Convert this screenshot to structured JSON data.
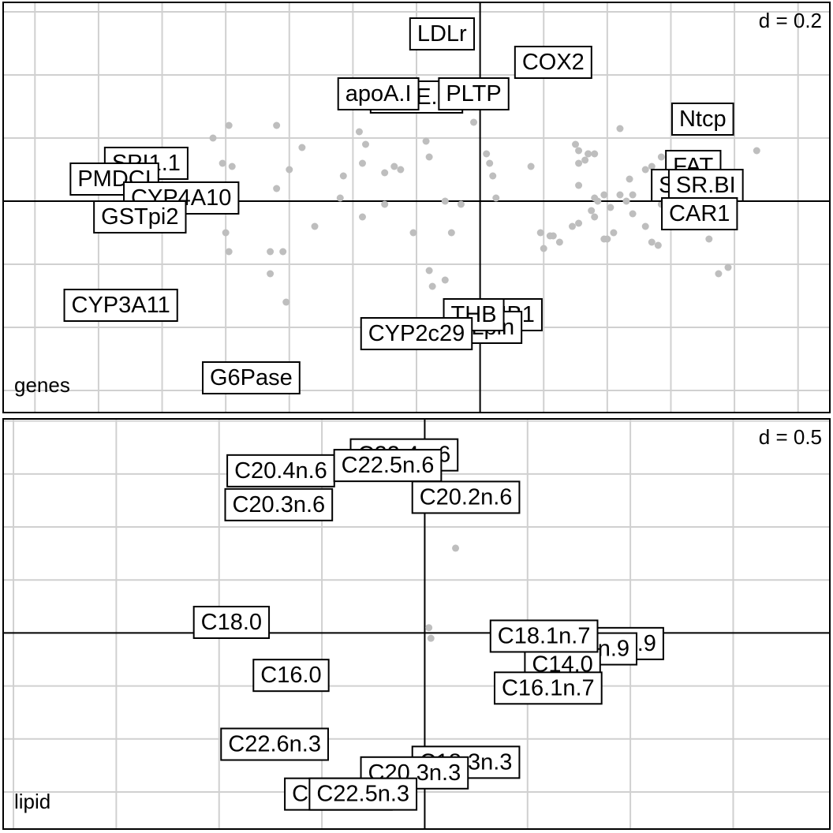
{
  "chart_data": [
    {
      "type": "scatter",
      "panel": "genes",
      "name_label": "genes",
      "scale_label": "d = 0.2",
      "grid_step": 0.2,
      "grid": true,
      "x_range": [
        -1.5,
        1.1
      ],
      "y_range": [
        -0.67,
        0.63
      ],
      "points": [
        [
          -0.79,
          0.24
        ],
        [
          -0.84,
          0.2
        ],
        [
          -0.64,
          0.24
        ],
        [
          -0.81,
          0.12
        ],
        [
          -0.78,
          0.11
        ],
        [
          -0.64,
          0.04
        ],
        [
          -0.56,
          0.17
        ],
        [
          -0.6,
          0.1
        ],
        [
          -0.44,
          0.01
        ],
        [
          -0.8,
          -0.1
        ],
        [
          -0.79,
          -0.16
        ],
        [
          -0.66,
          -0.16
        ],
        [
          -0.62,
          -0.16
        ],
        [
          -0.66,
          -0.23
        ],
        [
          -0.52,
          -0.08
        ],
        [
          -0.61,
          -0.32
        ],
        [
          -0.43,
          0.08
        ],
        [
          -0.38,
          0.22
        ],
        [
          -0.36,
          0.18
        ],
        [
          -0.3,
          0.09
        ],
        [
          -0.27,
          0.11
        ],
        [
          -0.25,
          0.1
        ],
        [
          -0.17,
          0.19
        ],
        [
          -0.16,
          0.14
        ],
        [
          -0.3,
          -0.01
        ],
        [
          -0.37,
          -0.05
        ],
        [
          -0.21,
          -0.1
        ],
        [
          -0.16,
          -0.22
        ],
        [
          -0.15,
          -0.27
        ],
        [
          -0.11,
          -0.25
        ],
        [
          -0.11,
          0.0
        ],
        [
          -0.09,
          -0.1
        ],
        [
          -0.06,
          -0.01
        ],
        [
          -0.02,
          0.25
        ],
        [
          0.02,
          0.15
        ],
        [
          0.04,
          0.08
        ],
        [
          0.05,
          0.01
        ],
        [
          0.03,
          0.12
        ],
        [
          0.16,
          0.11
        ],
        [
          0.19,
          -0.1
        ],
        [
          0.2,
          -0.15
        ],
        [
          0.22,
          -0.11
        ],
        [
          0.23,
          -0.11
        ],
        [
          0.25,
          -0.13
        ],
        [
          0.29,
          -0.08
        ],
        [
          0.31,
          0.05
        ],
        [
          0.3,
          0.18
        ],
        [
          0.31,
          0.12
        ],
        [
          0.31,
          -0.07
        ],
        [
          0.33,
          0.13
        ],
        [
          0.34,
          0.15
        ],
        [
          0.35,
          -0.03
        ],
        [
          0.36,
          0.01
        ],
        [
          0.36,
          -0.05
        ],
        [
          0.37,
          0.0
        ],
        [
          0.39,
          0.02
        ],
        [
          0.39,
          -0.12
        ],
        [
          0.4,
          -0.12
        ],
        [
          0.41,
          -0.02
        ],
        [
          0.42,
          -0.1
        ],
        [
          0.44,
          0.23
        ],
        [
          0.44,
          0.02
        ],
        [
          0.46,
          0.0
        ],
        [
          0.48,
          0.02
        ],
        [
          0.48,
          -0.04
        ],
        [
          0.47,
          0.07
        ],
        [
          0.52,
          0.1
        ],
        [
          0.52,
          -0.08
        ],
        [
          0.54,
          0.11
        ],
        [
          0.55,
          0.03
        ],
        [
          0.57,
          0.14
        ],
        [
          0.57,
          -0.01
        ],
        [
          0.59,
          -0.03
        ],
        [
          0.6,
          0.13
        ],
        [
          0.61,
          0.11
        ],
        [
          0.62,
          0.04
        ],
        [
          0.54,
          -0.13
        ],
        [
          0.56,
          -0.14
        ],
        [
          0.72,
          -0.12
        ],
        [
          0.87,
          0.16
        ],
        [
          0.75,
          -0.23
        ],
        [
          0.78,
          -0.21
        ],
        [
          0.34,
          0.15
        ],
        [
          0.31,
          0.16
        ],
        [
          0.36,
          0.15
        ],
        [
          -0.37,
          0.12
        ]
      ],
      "labels": [
        {
          "text": "LDLr",
          "x": -0.12,
          "y": 0.53
        },
        {
          "text": "COX2",
          "x": 0.23,
          "y": 0.44
        },
        {
          "text": "apoE.lo",
          "x": -0.2,
          "y": 0.33
        },
        {
          "text": "apoA.I",
          "x": -0.32,
          "y": 0.34
        },
        {
          "text": "PLTP",
          "x": -0.02,
          "y": 0.34
        },
        {
          "text": "Ntcp",
          "x": 0.7,
          "y": 0.26
        },
        {
          "text": "FAT",
          "x": 0.67,
          "y": 0.11
        },
        {
          "text": "SPI",
          "x": 0.62,
          "y": 0.05
        },
        {
          "text": "SR.BI",
          "x": 0.71,
          "y": 0.05
        },
        {
          "text": "CAR1",
          "x": 0.69,
          "y": -0.04
        },
        {
          "text": "SPI1.1",
          "x": -1.05,
          "y": 0.12
        },
        {
          "text": "PMDCI",
          "x": -1.15,
          "y": 0.07
        },
        {
          "text": "CYP4A10",
          "x": -0.94,
          "y": 0.01
        },
        {
          "text": "GSTpi2",
          "x": -1.07,
          "y": -0.05
        },
        {
          "text": "CYP3A11",
          "x": -1.13,
          "y": -0.33
        },
        {
          "text": "THB1",
          "x": 0.08,
          "y": -0.36
        },
        {
          "text": "Lpin",
          "x": 0.04,
          "y": -0.4
        },
        {
          "text": "THB",
          "x": -0.02,
          "y": -0.36
        },
        {
          "text": "CYP2c29",
          "x": -0.2,
          "y": -0.42
        },
        {
          "text": "G6Pase",
          "x": -0.72,
          "y": -0.56
        }
      ]
    },
    {
      "type": "scatter",
      "panel": "lipid",
      "name_label": "lipid",
      "scale_label": "d = 0.5",
      "grid_step": 0.5,
      "grid": true,
      "x_range": [
        -2.05,
        1.97
      ],
      "y_range": [
        -1.85,
        2.02
      ],
      "points": [
        [
          0.15,
          0.8
        ],
        [
          0.02,
          0.05
        ],
        [
          0.03,
          -0.05
        ]
      ],
      "labels": [
        {
          "text": "C22.4n.6",
          "x": -0.1,
          "y": 1.68
        },
        {
          "text": "C20.4n.6",
          "x": -0.7,
          "y": 1.53
        },
        {
          "text": "C22.5n.6",
          "x": -0.18,
          "y": 1.58
        },
        {
          "text": "C20.2n.6",
          "x": 0.2,
          "y": 1.28
        },
        {
          "text": "C20.3n.6",
          "x": -0.71,
          "y": 1.21
        },
        {
          "text": "C18.0",
          "x": -0.94,
          "y": 0.1
        },
        {
          "text": "C18.3n.9",
          "x": 0.9,
          "y": -0.1
        },
        {
          "text": "C18.1n.9",
          "x": 0.77,
          "y": -0.15
        },
        {
          "text": "C14.0",
          "x": 0.67,
          "y": -0.3
        },
        {
          "text": "C18.1n.7",
          "x": 0.58,
          "y": -0.03
        },
        {
          "text": "C16.1n.7",
          "x": 0.6,
          "y": -0.52
        },
        {
          "text": "C16.0",
          "x": -0.65,
          "y": -0.4
        },
        {
          "text": "C22.6n.3",
          "x": -0.73,
          "y": -1.05
        },
        {
          "text": "C18.3n.3",
          "x": 0.2,
          "y": -1.22
        },
        {
          "text": "C20.3n.3",
          "x": -0.05,
          "y": -1.32
        },
        {
          "text": "C20.5n.3",
          "x": -0.42,
          "y": -1.52
        },
        {
          "text": "C22.5n.3",
          "x": -0.3,
          "y": -1.52
        }
      ]
    }
  ]
}
